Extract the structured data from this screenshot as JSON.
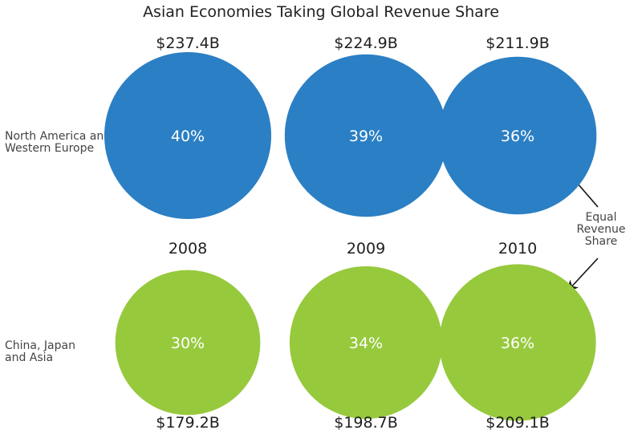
{
  "chart_data": {
    "type": "bubble",
    "title": "Asian Economies Taking Global Revenue Share",
    "years": [
      "2008",
      "2009",
      "2010"
    ],
    "series": [
      {
        "name": "North America and\nWestern Europe",
        "color": "#2b7fc4",
        "shares": [
          "40%",
          "39%",
          "36%"
        ],
        "share_values": [
          40,
          39,
          36
        ],
        "revenues": [
          "$237.4B",
          "$224.9B",
          "$211.9B"
        ],
        "revenue_values": [
          237.4,
          224.9,
          211.9
        ]
      },
      {
        "name": "China, Japan\nand Asia",
        "color": "#97c93d",
        "shares": [
          "30%",
          "34%",
          "36%"
        ],
        "share_values": [
          30,
          34,
          36
        ],
        "revenues": [
          "$179.2B",
          "$198.7B",
          "$209.1B"
        ],
        "revenue_values": [
          179.2,
          198.7,
          209.1
        ]
      }
    ],
    "annotation": "Equal\nRevenue\nShare"
  }
}
